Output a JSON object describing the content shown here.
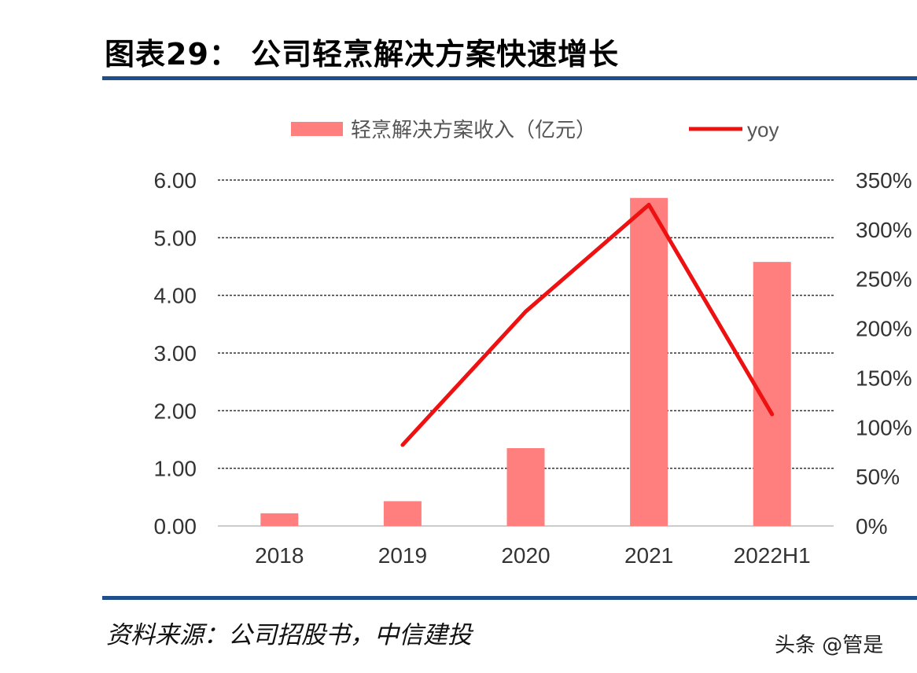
{
  "header": {
    "title": "图表29：  公司轻烹解决方案快速增长"
  },
  "footer": {
    "source": "资料来源：公司招股书，中信建投",
    "watermark": "头条 @管是"
  },
  "colors": {
    "bar": "#ff7f7f",
    "line": "#ee1111",
    "rule": "#1f4e8c"
  },
  "chart_data": {
    "type": "bar+line",
    "categories": [
      "2018",
      "2019",
      "2020",
      "2021",
      "2022H1"
    ],
    "series": [
      {
        "name": "轻烹解决方案收入（亿元）",
        "type": "bar",
        "axis": "left",
        "values": [
          0.22,
          0.43,
          1.35,
          5.69,
          4.58
        ]
      },
      {
        "name": "yoy",
        "type": "line",
        "axis": "right",
        "values": [
          null,
          82,
          217,
          325,
          113
        ]
      }
    ],
    "left_axis": {
      "ylim": [
        0,
        6
      ],
      "ticks": [
        "0.00",
        "1.00",
        "2.00",
        "3.00",
        "4.00",
        "5.00",
        "6.00"
      ]
    },
    "right_axis": {
      "ylim": [
        0,
        350
      ],
      "ticks": [
        "0%",
        "50%",
        "100%",
        "150%",
        "200%",
        "250%",
        "300%",
        "350%"
      ]
    },
    "grid": true,
    "legend": "top"
  }
}
